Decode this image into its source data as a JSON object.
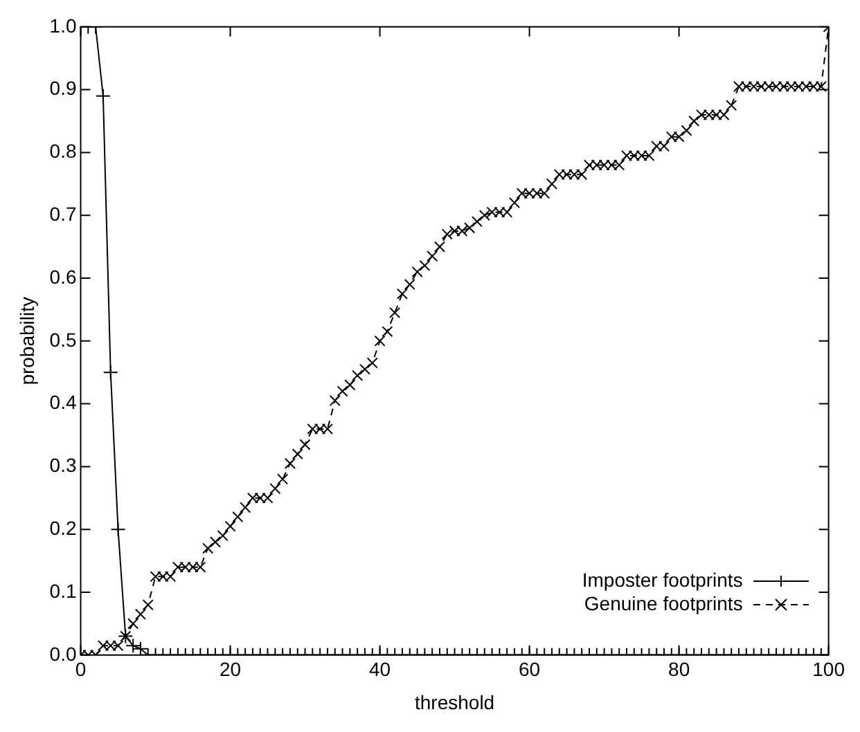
{
  "chart_data": {
    "type": "line",
    "xlabel": "threshold",
    "ylabel": "probability",
    "x": [
      0,
      1,
      2,
      3,
      4,
      5,
      6,
      7,
      8,
      9,
      10,
      11,
      12,
      13,
      14,
      15,
      16,
      17,
      18,
      19,
      20,
      21,
      22,
      23,
      24,
      25,
      26,
      27,
      28,
      29,
      30,
      31,
      32,
      33,
      34,
      35,
      36,
      37,
      38,
      39,
      40,
      41,
      42,
      43,
      44,
      45,
      46,
      47,
      48,
      49,
      50,
      51,
      52,
      53,
      54,
      55,
      56,
      57,
      58,
      59,
      60,
      61,
      62,
      63,
      64,
      65,
      66,
      67,
      68,
      69,
      70,
      71,
      72,
      73,
      74,
      75,
      76,
      77,
      78,
      79,
      80,
      81,
      82,
      83,
      84,
      85,
      86,
      87,
      88,
      89,
      90,
      91,
      92,
      93,
      94,
      95,
      96,
      97,
      98,
      99,
      100
    ],
    "series": [
      {
        "name": "Imposter footprints",
        "color": "#000000",
        "marker": "plus",
        "line_style": "solid",
        "values": [
          1,
          1,
          1,
          0.89,
          0.45,
          0.2,
          0.03,
          0.015,
          0.01,
          0,
          0,
          0,
          0,
          0,
          0,
          0,
          0,
          0,
          0,
          0,
          0,
          0,
          0,
          0,
          0,
          0,
          0,
          0,
          0,
          0,
          0,
          0,
          0,
          0,
          0,
          0,
          0,
          0,
          0,
          0,
          0,
          0,
          0,
          0,
          0,
          0,
          0,
          0,
          0,
          0,
          0,
          0,
          0,
          0,
          0,
          0,
          0,
          0,
          0,
          0,
          0,
          0,
          0,
          0,
          0,
          0,
          0,
          0,
          0,
          0,
          0,
          0,
          0,
          0,
          0,
          0,
          0,
          0,
          0,
          0,
          0,
          0,
          0,
          0,
          0,
          0,
          0,
          0,
          0,
          0,
          0,
          0,
          0,
          0,
          0,
          0,
          0,
          0,
          0,
          0,
          0
        ]
      },
      {
        "name": "Genuine footprints",
        "color": "#000000",
        "marker": "cross",
        "line_style": "dashed",
        "values": [
          0,
          0,
          0,
          0.015,
          0.015,
          0.015,
          0.03,
          0.05,
          0.065,
          0.08,
          0.125,
          0.125,
          0.125,
          0.14,
          0.14,
          0.14,
          0.14,
          0.17,
          0.18,
          0.19,
          0.205,
          0.22,
          0.235,
          0.25,
          0.25,
          0.25,
          0.265,
          0.28,
          0.305,
          0.32,
          0.335,
          0.36,
          0.36,
          0.36,
          0.405,
          0.42,
          0.43,
          0.445,
          0.455,
          0.465,
          0.5,
          0.515,
          0.545,
          0.575,
          0.59,
          0.61,
          0.62,
          0.635,
          0.65,
          0.67,
          0.675,
          0.675,
          0.68,
          0.69,
          0.7,
          0.705,
          0.705,
          0.705,
          0.72,
          0.735,
          0.735,
          0.735,
          0.735,
          0.75,
          0.765,
          0.765,
          0.765,
          0.765,
          0.78,
          0.78,
          0.78,
          0.78,
          0.78,
          0.795,
          0.795,
          0.795,
          0.795,
          0.81,
          0.81,
          0.825,
          0.825,
          0.835,
          0.85,
          0.86,
          0.86,
          0.86,
          0.86,
          0.875,
          0.905,
          0.905,
          0.905,
          0.905,
          0.905,
          0.905,
          0.905,
          0.905,
          0.905,
          0.905,
          0.905,
          0.905,
          1
        ]
      }
    ],
    "xlim": [
      0,
      100
    ],
    "xticks": [
      0,
      20,
      40,
      60,
      80,
      100
    ],
    "ylim": [
      0,
      1
    ],
    "yticks": [
      {
        "value": 0,
        "label": "0.0"
      },
      {
        "value": 0.1,
        "label": "0.1"
      },
      {
        "value": 0.2,
        "label": "0.2"
      },
      {
        "value": 0.3,
        "label": "0.3"
      },
      {
        "value": 0.4,
        "label": "0.4"
      },
      {
        "value": 0.5,
        "label": "0.5"
      },
      {
        "value": 0.6,
        "label": "0.6"
      },
      {
        "value": 0.7,
        "label": "0.7"
      },
      {
        "value": 0.8,
        "label": "0.8"
      },
      {
        "value": 0.9,
        "label": "0.9"
      },
      {
        "value": 1,
        "label": "1.0"
      }
    ],
    "legend": "bottom right"
  }
}
